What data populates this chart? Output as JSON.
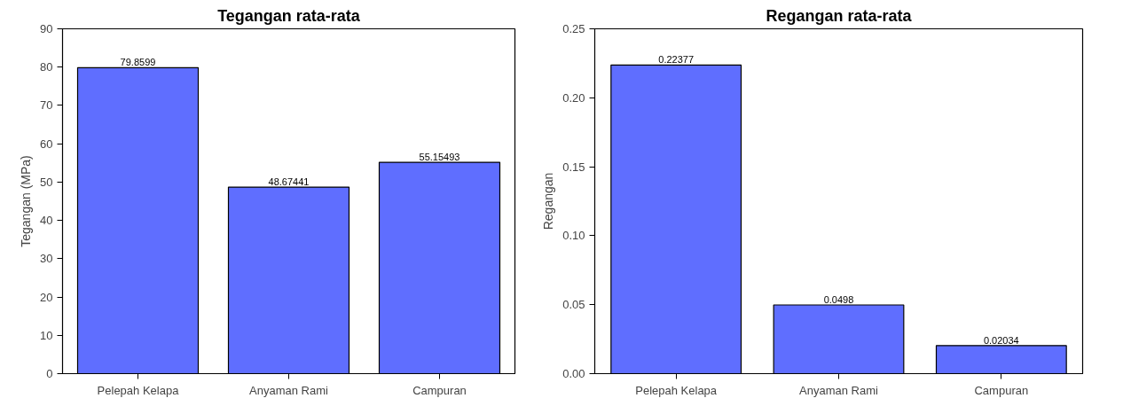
{
  "chart_data": [
    {
      "type": "bar",
      "title": "Tegangan rata-rata",
      "ylabel": "Tegangan (MPa)",
      "categories": [
        "Pelepah Kelapa",
        "Anyaman Rami",
        "Campuran"
      ],
      "values": [
        79.8599,
        48.67441,
        55.15493
      ],
      "color": "#5f6eff",
      "ylim": [
        0,
        90
      ],
      "yticks": [
        0,
        10,
        20,
        30,
        40,
        50,
        60,
        70,
        80,
        90
      ],
      "data_labels": true,
      "grid": false
    },
    {
      "type": "bar",
      "title": "Regangan rata-rata",
      "ylabel": "Regangan",
      "categories": [
        "Pelepah Kelapa",
        "Anyaman Rami",
        "Campuran"
      ],
      "values": [
        0.22377,
        0.0498,
        0.02034
      ],
      "color": "#5f6eff",
      "ylim": [
        0,
        0.25
      ],
      "yticks": [
        {
          "value": 0,
          "label": "0.00"
        },
        {
          "value": 0.05,
          "label": "0.05"
        },
        {
          "value": 0.1,
          "label": "0.10"
        },
        {
          "value": 0.15,
          "label": "0.15"
        },
        {
          "value": 0.2,
          "label": "0.20"
        },
        {
          "value": 0.25,
          "label": "0.25"
        }
      ],
      "data_labels": true,
      "grid": false
    }
  ]
}
